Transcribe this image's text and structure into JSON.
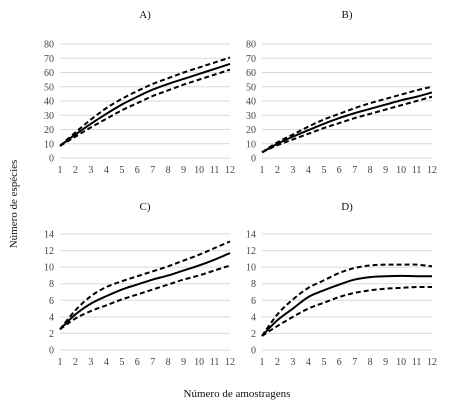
{
  "figure": {
    "ylabel": "Número de espécies",
    "xlabel": "Número de amostragens"
  },
  "chart_data": [
    {
      "type": "line",
      "title": "A)",
      "x": [
        1,
        2,
        3,
        4,
        5,
        6,
        7,
        8,
        9,
        10,
        11,
        12
      ],
      "ylim": [
        0,
        80
      ],
      "yticks": [
        0,
        10,
        20,
        30,
        40,
        50,
        60,
        70,
        80
      ],
      "grid": true,
      "series": [
        {
          "style": "dashed",
          "values": [
            8.5,
            18.0,
            27.0,
            35.0,
            41.5,
            47.0,
            52.0,
            56.0,
            60.0,
            63.5,
            67.0,
            70.5
          ]
        },
        {
          "style": "solid",
          "values": [
            8.5,
            16.5,
            24.0,
            31.0,
            37.5,
            43.0,
            48.0,
            52.0,
            55.5,
            59.0,
            62.5,
            66.0
          ]
        },
        {
          "style": "dashed",
          "values": [
            8.5,
            15.0,
            21.5,
            27.5,
            33.5,
            38.5,
            43.5,
            47.5,
            51.5,
            55.0,
            58.5,
            62.0
          ]
        }
      ]
    },
    {
      "type": "line",
      "title": "B)",
      "x": [
        1,
        2,
        3,
        4,
        5,
        6,
        7,
        8,
        9,
        10,
        11,
        12
      ],
      "ylim": [
        0,
        80
      ],
      "yticks": [
        0,
        10,
        20,
        30,
        40,
        50,
        60,
        70,
        80
      ],
      "grid": true,
      "series": [
        {
          "style": "dashed",
          "values": [
            4.0,
            11.0,
            16.5,
            22.0,
            27.0,
            31.0,
            35.0,
            38.5,
            41.5,
            44.5,
            47.5,
            50.0
          ]
        },
        {
          "style": "solid",
          "values": [
            4.0,
            10.0,
            15.0,
            19.5,
            24.0,
            28.0,
            31.5,
            34.5,
            37.5,
            40.5,
            43.0,
            46.0
          ]
        },
        {
          "style": "dashed",
          "values": [
            4.0,
            9.0,
            13.0,
            17.0,
            21.0,
            24.5,
            28.0,
            31.0,
            34.0,
            37.0,
            40.0,
            43.0
          ]
        }
      ]
    },
    {
      "type": "line",
      "title": "C)",
      "x": [
        1,
        2,
        3,
        4,
        5,
        6,
        7,
        8,
        9,
        10,
        11,
        12
      ],
      "ylim": [
        0,
        14
      ],
      "yticks": [
        0,
        2,
        4,
        6,
        8,
        10,
        12,
        14
      ],
      "grid": true,
      "series": [
        {
          "style": "dashed",
          "values": [
            2.5,
            4.8,
            6.5,
            7.6,
            8.3,
            8.9,
            9.5,
            10.1,
            10.8,
            11.5,
            12.3,
            13.1
          ]
        },
        {
          "style": "solid",
          "values": [
            2.5,
            4.3,
            5.6,
            6.5,
            7.3,
            7.9,
            8.5,
            9.0,
            9.6,
            10.2,
            10.9,
            11.7
          ]
        },
        {
          "style": "dashed",
          "values": [
            2.5,
            3.8,
            4.7,
            5.4,
            6.1,
            6.7,
            7.3,
            7.9,
            8.5,
            9.0,
            9.6,
            10.2
          ]
        }
      ]
    },
    {
      "type": "line",
      "title": "D)",
      "x": [
        1,
        2,
        3,
        4,
        5,
        6,
        7,
        8,
        9,
        10,
        11,
        12
      ],
      "ylim": [
        0,
        14
      ],
      "yticks": [
        0,
        2,
        4,
        6,
        8,
        10,
        12,
        14
      ],
      "grid": true,
      "series": [
        {
          "style": "dashed",
          "values": [
            1.7,
            4.3,
            6.1,
            7.5,
            8.4,
            9.3,
            9.9,
            10.2,
            10.3,
            10.3,
            10.3,
            10.1
          ]
        },
        {
          "style": "solid",
          "values": [
            1.7,
            3.6,
            5.0,
            6.4,
            7.2,
            7.9,
            8.5,
            8.8,
            8.9,
            8.95,
            8.9,
            8.9
          ]
        },
        {
          "style": "dashed",
          "values": [
            1.7,
            2.9,
            4.0,
            5.0,
            5.7,
            6.4,
            6.9,
            7.2,
            7.4,
            7.5,
            7.6,
            7.6
          ]
        }
      ]
    }
  ]
}
